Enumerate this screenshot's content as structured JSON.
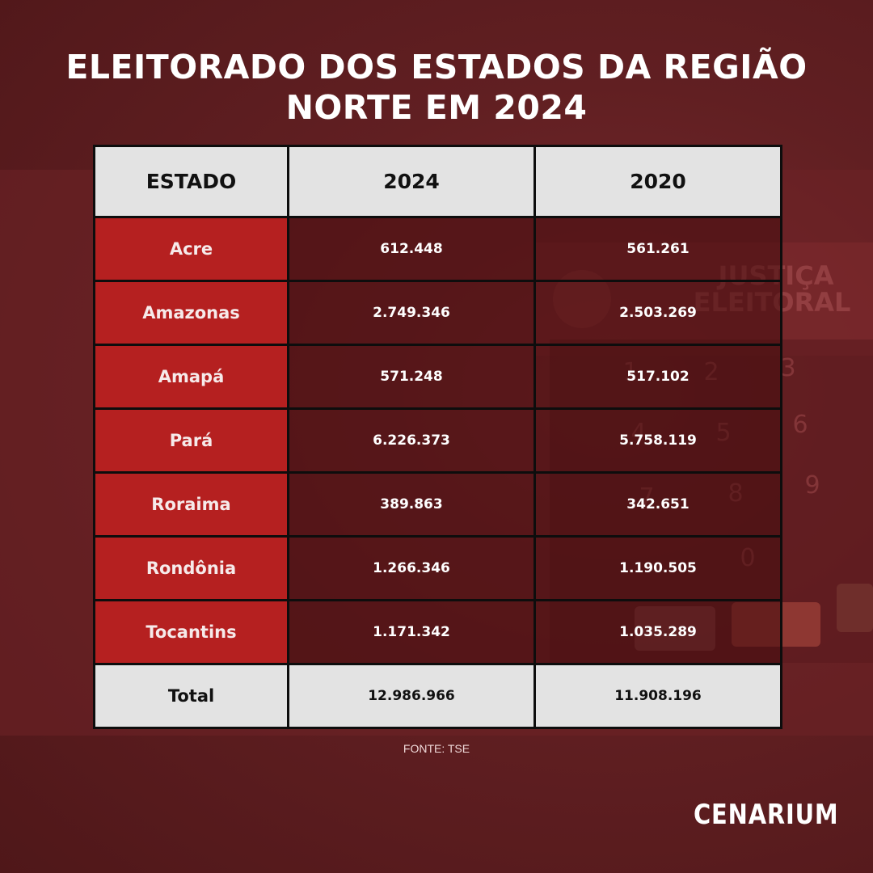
{
  "title": "ELEITORADO DOS ESTADOS DA REGIÃO NORTE EM 2024",
  "chart_data": {
    "type": "table",
    "title": "ELEITORADO DOS ESTADOS DA REGIÃO NORTE EM 2024",
    "columns": [
      "ESTADO",
      "2024",
      "2020"
    ],
    "rows": [
      {
        "estado": "Acre",
        "v2024": "612.448",
        "v2020": "561.261"
      },
      {
        "estado": "Amazonas",
        "v2024": "2.749.346",
        "v2020": "2.503.269"
      },
      {
        "estado": "Amapá",
        "v2024": "571.248",
        "v2020": "517.102"
      },
      {
        "estado": "Pará",
        "v2024": "6.226.373",
        "v2020": "5.758.119"
      },
      {
        "estado": "Roraima",
        "v2024": "389.863",
        "v2020": "342.651"
      },
      {
        "estado": "Rondônia",
        "v2024": "1.266.346",
        "v2020": "1.190.505"
      },
      {
        "estado": "Tocantins",
        "v2024": "1.171.342",
        "v2020": "1.035.289"
      }
    ],
    "total": {
      "label": "Total",
      "v2024": "12.986.966",
      "v2020": "11.908.196"
    }
  },
  "background": {
    "sign_line1": "JUSTIÇA",
    "sign_line2": "ELEITORAL",
    "keys": [
      "1",
      "2",
      "3",
      "4",
      "5",
      "6",
      "7",
      "8",
      "9",
      "0"
    ]
  },
  "source": "FONTE: TSE",
  "brand": "CENARIUM",
  "colors": {
    "background": "#611f22",
    "state_cell": "#b52020",
    "header_cell": "#e3e3e3",
    "text_light": "#ffffff"
  }
}
